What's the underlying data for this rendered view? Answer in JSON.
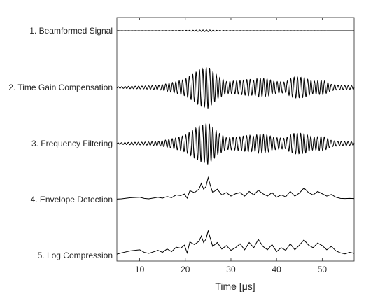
{
  "chart_data": {
    "type": "line",
    "title": "",
    "xlabel": "Time [μs]",
    "ylabel": "",
    "xlim": [
      5,
      57
    ],
    "xticks": [
      10,
      20,
      30,
      40,
      50
    ],
    "grid": false,
    "series": [
      {
        "name": "1. Beamformed Signal",
        "kind": "oscillation",
        "envelope_x": [
          5,
          10,
          15,
          18,
          20,
          22,
          23,
          24,
          25,
          26,
          27,
          29,
          31,
          33,
          35,
          37,
          40,
          42,
          44,
          46,
          48,
          50,
          52,
          54,
          57
        ],
        "envelope_y": [
          0.015,
          0.02,
          0.035,
          0.06,
          0.09,
          0.12,
          0.16,
          0.18,
          0.2,
          0.14,
          0.09,
          0.06,
          0.035,
          0.03,
          0.025,
          0.02,
          0.02,
          0.018,
          0.016,
          0.015,
          0.013,
          0.012,
          0.01,
          0.01,
          0.01
        ]
      },
      {
        "name": "2. Time Gain Compensation",
        "kind": "oscillation",
        "envelope_x": [
          5,
          8,
          11,
          14,
          16,
          18,
          20,
          21,
          22,
          23,
          24,
          25,
          26,
          27,
          28,
          29,
          30,
          32,
          34,
          35,
          36,
          38,
          39,
          40,
          42,
          43,
          44,
          46,
          47,
          48,
          50,
          51,
          52,
          54,
          57
        ],
        "envelope_y": [
          0.03,
          0.06,
          0.07,
          0.1,
          0.18,
          0.28,
          0.4,
          0.55,
          0.68,
          0.85,
          0.9,
          1.0,
          0.78,
          0.55,
          0.42,
          0.28,
          0.3,
          0.33,
          0.4,
          0.35,
          0.45,
          0.42,
          0.32,
          0.28,
          0.25,
          0.42,
          0.5,
          0.48,
          0.38,
          0.3,
          0.35,
          0.27,
          0.15,
          0.1,
          0.08
        ]
      },
      {
        "name": "3. Frequency Filtering",
        "kind": "oscillation",
        "envelope_x": [
          5,
          8,
          11,
          14,
          16,
          18,
          20,
          21,
          22,
          23,
          24,
          25,
          26,
          27,
          28,
          29,
          30,
          32,
          34,
          35,
          36,
          38,
          39,
          40,
          42,
          43,
          44,
          46,
          47,
          48,
          50,
          51,
          52,
          54,
          57
        ],
        "envelope_y": [
          0.03,
          0.06,
          0.07,
          0.1,
          0.18,
          0.28,
          0.4,
          0.55,
          0.68,
          0.85,
          0.9,
          1.0,
          0.78,
          0.55,
          0.42,
          0.28,
          0.3,
          0.33,
          0.4,
          0.35,
          0.45,
          0.42,
          0.32,
          0.28,
          0.25,
          0.42,
          0.5,
          0.48,
          0.38,
          0.3,
          0.35,
          0.27,
          0.15,
          0.1,
          0.08
        ]
      },
      {
        "name": "4. Envelope Detection",
        "kind": "curve",
        "x": [
          5,
          6,
          8,
          10,
          11,
          12,
          14,
          15,
          16,
          17,
          18,
          19,
          19.8,
          20.4,
          21,
          22,
          23,
          23.5,
          24,
          24.5,
          25,
          25.5,
          26,
          27,
          28,
          29,
          30,
          31,
          32,
          33,
          34,
          35,
          36,
          37,
          38,
          39,
          40,
          41,
          42,
          43,
          44,
          45,
          46,
          47,
          48,
          49,
          50,
          51,
          52,
          53,
          54,
          55,
          56,
          57
        ],
        "y": [
          0.02,
          0.03,
          0.08,
          0.1,
          0.05,
          0.03,
          0.1,
          0.06,
          0.13,
          0.08,
          0.2,
          0.17,
          0.24,
          0.06,
          0.38,
          0.3,
          0.45,
          0.7,
          0.45,
          0.55,
          0.95,
          0.6,
          0.3,
          0.45,
          0.2,
          0.3,
          0.15,
          0.25,
          0.3,
          0.15,
          0.35,
          0.2,
          0.4,
          0.25,
          0.15,
          0.3,
          0.1,
          0.2,
          0.12,
          0.35,
          0.15,
          0.28,
          0.5,
          0.3,
          0.2,
          0.35,
          0.25,
          0.15,
          0.22,
          0.1,
          0.05,
          0.04,
          0.05,
          0.04
        ]
      },
      {
        "name": "5. Log Compression",
        "kind": "curve",
        "x": [
          5,
          6,
          8,
          10,
          11,
          12,
          14,
          15,
          16,
          17,
          18,
          19,
          19.8,
          20.4,
          21,
          22,
          23,
          23.5,
          24,
          24.5,
          25,
          25.5,
          26,
          27,
          28,
          29,
          30,
          31,
          32,
          33,
          34,
          35,
          36,
          37,
          38,
          39,
          40,
          41,
          42,
          43,
          44,
          45,
          46,
          47,
          48,
          49,
          50,
          51,
          52,
          53,
          54,
          55,
          56,
          57
        ],
        "y": [
          0.05,
          0.1,
          0.18,
          0.22,
          0.12,
          0.08,
          0.2,
          0.12,
          0.25,
          0.15,
          0.32,
          0.28,
          0.4,
          0.1,
          0.52,
          0.42,
          0.55,
          0.75,
          0.5,
          0.62,
          0.95,
          0.65,
          0.35,
          0.5,
          0.25,
          0.38,
          0.2,
          0.3,
          0.45,
          0.22,
          0.5,
          0.3,
          0.62,
          0.35,
          0.22,
          0.42,
          0.15,
          0.3,
          0.2,
          0.45,
          0.22,
          0.4,
          0.6,
          0.4,
          0.3,
          0.48,
          0.38,
          0.22,
          0.35,
          0.18,
          0.1,
          0.06,
          0.12,
          0.08
        ]
      }
    ]
  }
}
